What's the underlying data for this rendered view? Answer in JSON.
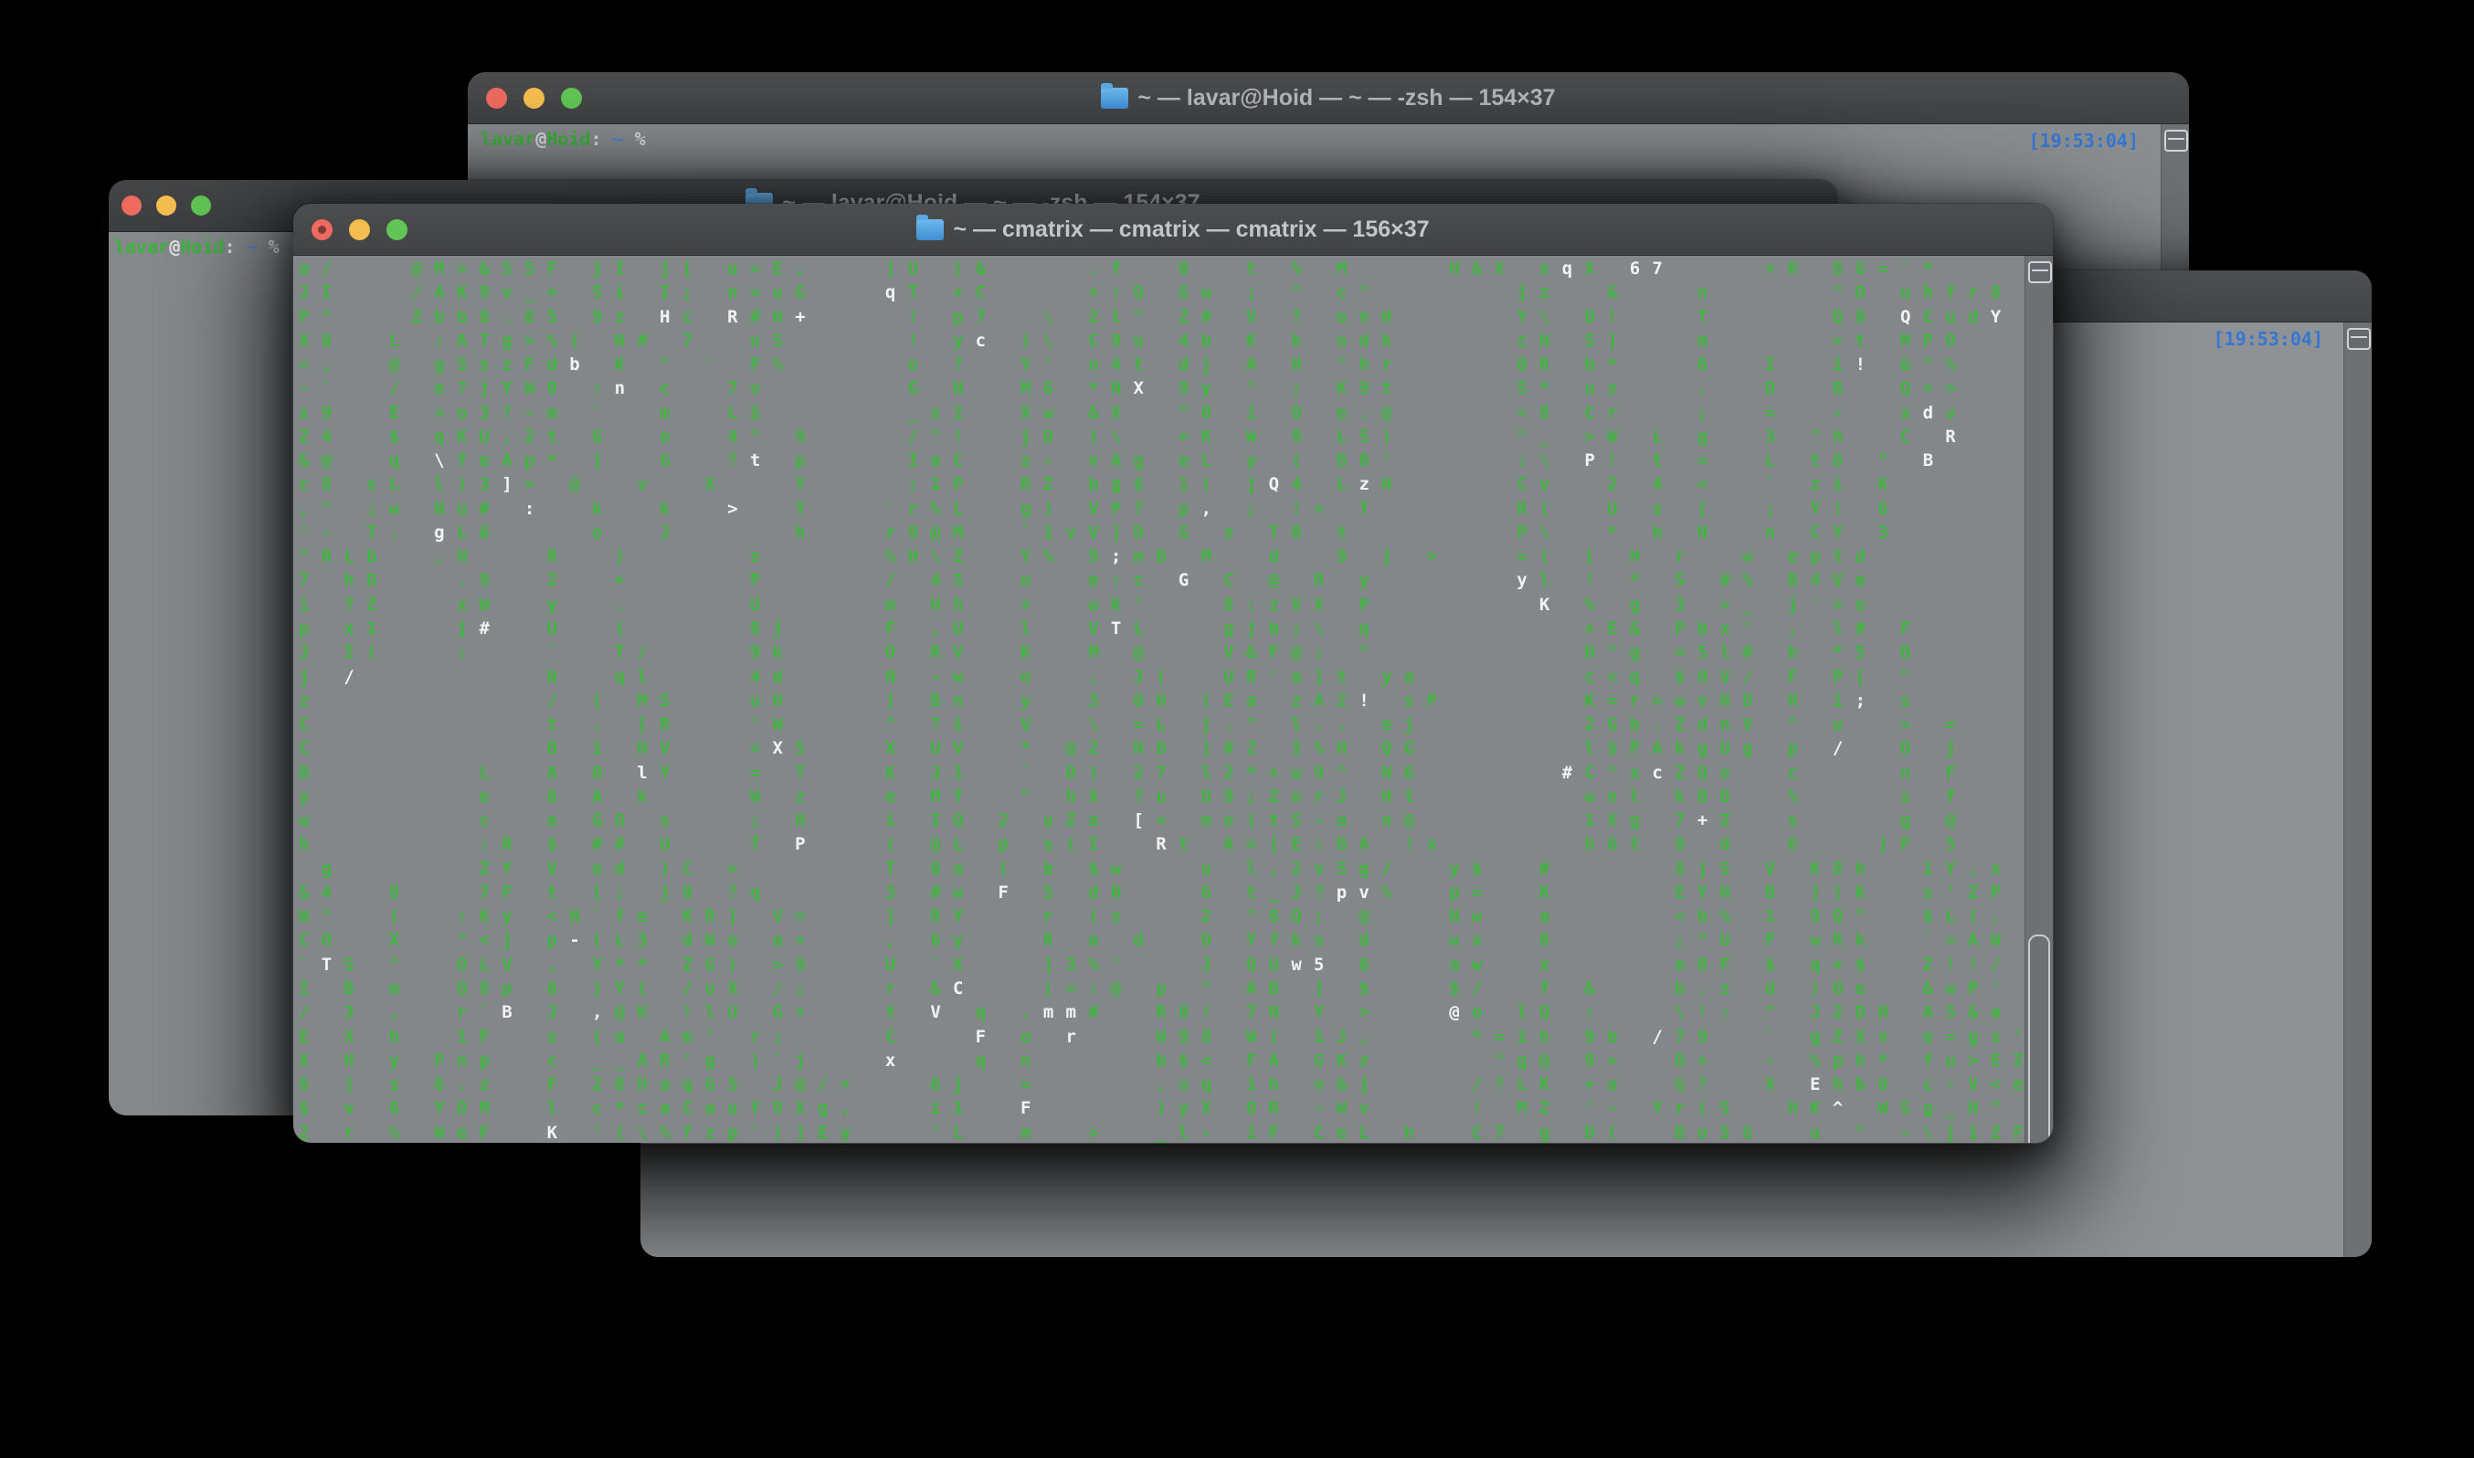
{
  "colors": {
    "matrix_green": "#3fb53f",
    "matrix_white": "#f2f2f2",
    "timestamp_blue": "#3576d2",
    "prompt_green": "#3cb43c",
    "prompt_tilde_blue": "#4a86d8"
  },
  "titles": {
    "zsh_window_title": "~ — lavar@Hoid — ~ — -zsh — 154×37",
    "cmatrix_window_title": "~ — cmatrix — cmatrix — cmatrix — 156×37"
  },
  "terminal": {
    "timestamp": "[19:53:04]",
    "prompt_segments": [
      {
        "text": "lavar",
        "color": "green"
      },
      {
        "text": "@",
        "color": "white"
      },
      {
        "text": "Hoid",
        "color": "green"
      },
      {
        "text": ":",
        "color": "white"
      },
      {
        "text": " ~",
        "color": "blue"
      },
      {
        "text": " %",
        "color": "white"
      }
    ]
  },
  "matrix": {
    "columns": 78,
    "rows": [
      "a/   @M>&S5F jI j[ u>E,   ]U (&    .f  0  t % M    H&X xqX 67    +R 8G=`*  ",
      "JI   /AK9v_+ 5i I; n=uG   qT +C    +:Q 6w ; ^ c^      jz  &   n     \"O uhfr8  ",
      "P^   Zbb8.85 9z Hc R#H+    ! p7  \\ 2l\" Z# V ? onH     Y\\ D!   T     Q0 QCudY  ",
      "X8  L :ATg>%( N# 7  uS     ! yc )\\ C9u 4b K k odk     cN S]   m     >t MP0    ",
      "<,  @ gSszFdb K ^ ` F%     o ?  Y' n4t dj A H ^hr     0R b*   6  I  i! &^%    ",
      "-`  / e?jYW0 :n c  7v      G N  M6 *NX 9y ^ ; K9t     5* uz   .  D  B  Q+>    ",
      "x9  E >o3?-m `  m  L$      _x2  Xw &X  ^0 i O e.@     <8 Cr   ;  =  -  xdv    ",
      "Z4  $ qKU,2t 6  o  4\" 9    /\"!  jD )\\  +K W 9 L5)     \"_ >W L g  3 ^h  C R    ",
      "&@  q \\feAp* ]  G  ?t p    IaC  s- vAg eL y ( B0'     :\\ P! t =  L t0 \" B     ",
      "c8 sL l)3]> @  v  X   Y    ;1P  RZ bg$ 1( jQ4 LzH     Cv  2 4 <  ` zi K       ",
      ",^ ;w Nu# :  k  k  >  Y   `r%L  g) VP? p, ; !+ T      R(  U s [  ; Y! 6       ",
      "'- T. gL6    o  J     h   r9@M  `1vV]D G z T0 t       P\\  * h N  n CY 3       ",
      "\"RLb  ,N   R  )     s     %H\\Z  Y% 9;mB M  d  9 j >   =( [ H r  w eptd        ",
      "7 hD   .9  2  +     P     / 4S  o  e:c G C @ R y      yl ! * S #% B4Ve        ",
      "i 7Z   xW  y  .     U     m Hh  +  wK'   8:zVX P       K % g 3 >_ j`>o        ",
      "p x1   j#  U  (     8j    F ,U  l  VTL   gjb;\\ q         +E& Pbx' , l# F      ",
      "J I(   :   `  T/    9k    O RV  K  M @   V&F@; \"         D^g =5l# h *5 B      ",
      "j /        N  ql    4d    N -w  o  , J(  UR'a]t ya       c<q $HV/ F P[ \"      ",
      "z          / ( MS   uH    ] Bn  y  3 0H (Ea zA2! sP      K=r>wvND H i; s      ",
      "C          t . [R   'W    ^ ?i  V  \\ =L j.\" l.. ej       2Gb.ZdnV ^ u  = =    ",
      "C          B i NV   <X5   X UV  * @2 ND ]#2 I%H QG       l$PAkgUg p /  O j    ",
      "B       L  A O lY   = T   K J1  ` D) 27 l2*+w9^ N6      #C\"xcZQo  c    n F    ",
      "y       e  6 A k    W z   e Mf  \" hX ?u D9;ZnrJ Ht       wnl kBO  %    s f    ",
      "w       c  e GD s   ; H   i IQ 2 uZa [< mo(tS-a n@       1Xg 7+Z  s    g @    ",
      "h       :R $ ## U   T P   ( @L p s(I  Rt A=[E:BA !x      h6t 8 d  6   ]F 5    ",
      " g      ZY V ed )C >      T 0a ( b $w   u l,2v5g/  y$  #     8jS V K8h  1Y,x  ",
      "&4  8   7F t [; j0 ?q     3 #w F 5 dN   6 t_J?pv%  p=  K     EYN B ](K  s'ZP  ",
      "W\"  (  :Ky <N`fe KR] V=   ] RY   r (z   2 ^8Q; @   Nw  a     <b% 1 9Q\"  $L(,  ",
      "CO  X  ^<j p-(L3 dWo a+   , 6y   R a d  D Yfks d   wx  0     ;\"U F wRk  `=AW  ",
      "`TS ^  OLV , Y** ZG) >9   U `X   ]3%'   J QUw5 6   aw  x     eRF $ q+$  Z!!/  ",
      "I B m  O8p 6 )Y( /uX /;   r &C   (<:@ p ^ AB ] $   $/  f &   b.z d )Oe  &wP'  ",
      "/ 3 ,  r`B J ,@K !lU G+   t V q .mm#  R0! 7N Y >   @o lQ :   \\!: \" J2DH A5&a  ",
      "E X h  1F  s (a Am' r;    C   F o r   W98 W( 1J,    *=1h 9b /79  ` gZXv e=gs' ",
      "X H y Pnp  c __AR'g )`j   x   q n     b$< FA GKz     ^g@ 9+  D+  - %ph* fu>EZR",
      "6 ] s 6.z  F 28HaqGS J@/+   6j  =     ,uq 1h v&j    /?LK +a  G?  X Ehb0 c-V<e\"",
      "$ v 6 YDM  l c*caCauf9Xg,   i1  F     )yX 0R -Wv    ! MZ '- Yr(5  HK^ WSg_H\" ",
      "2 r % WeF  K '(\\%fzp`)]Ey   'L  m  >  _l- iF CeL h  C7 g D(  BoSG  u \" -\\j1ZF "
    ],
    "white_cells": {
      "1": [
        57,
        60,
        61,
        64
      ],
      "2": [
        27
      ],
      "3": [
        17,
        20,
        23,
        72,
        76
      ],
      "4": [
        31
      ],
      "5": [
        13,
        70
      ],
      "6": [
        15,
        38
      ],
      "7": [
        73
      ],
      "8": [
        74
      ],
      "9": [
        7,
        21,
        58,
        73
      ],
      "10": [
        10,
        44,
        48
      ],
      "11": [
        11,
        20,
        41
      ],
      "12": [
        7
      ],
      "13": [
        37
      ],
      "14": [
        40,
        55
      ],
      "15": [
        56
      ],
      "16": [
        9,
        37
      ],
      "18": [
        3
      ],
      "19": [
        48,
        70
      ],
      "21": [
        22,
        69
      ],
      "22": [
        16,
        57,
        61
      ],
      "24": [
        38,
        63
      ],
      "25": [
        23,
        39
      ],
      "27": [
        32,
        47,
        48
      ],
      "29": [
        13
      ],
      "30": [
        2,
        45,
        46
      ],
      "31": [
        30
      ],
      "32": [
        10,
        14,
        29,
        34,
        35,
        52
      ],
      "33": [
        31,
        35,
        61
      ],
      "34": [
        27
      ],
      "35": [
        68
      ],
      "36": [
        33,
        69
      ],
      "37": [
        12
      ]
    }
  }
}
